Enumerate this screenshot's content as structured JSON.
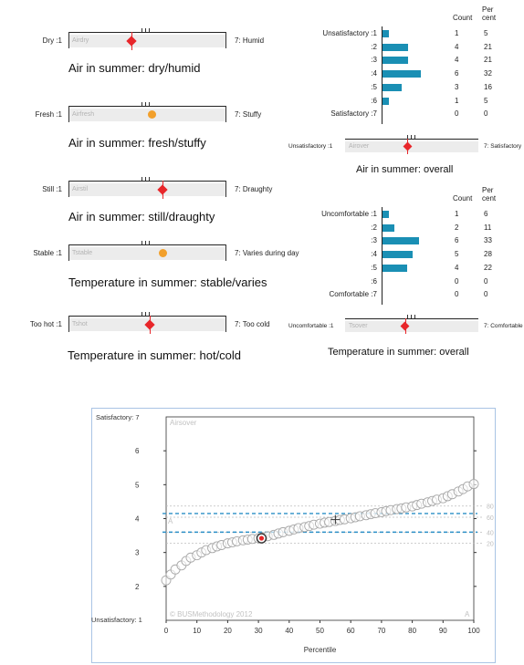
{
  "scales": [
    {
      "left": "Dry :1",
      "right": "7: Humid",
      "code": "Airdry",
      "title": "Air in summer: dry/humid",
      "marker": "diamond",
      "color": "#e8262a",
      "score": 3.4
    },
    {
      "left": "Fresh :1",
      "right": "7: Stuffy",
      "code": "Airfresh",
      "title": "Air in summer: fresh/stuffy",
      "marker": "dot",
      "color": "#f2a02c",
      "score": 4.2
    },
    {
      "left": "Still :1",
      "right": "7: Draughty",
      "code": "Airstil",
      "title": "Air in summer: still/draughty",
      "marker": "diamond",
      "color": "#e8262a",
      "score": 4.6
    },
    {
      "left": "Stable :1",
      "right": "7: Varies during day",
      "code": "Tstable",
      "title": "Temperature in summer: stable/varies",
      "marker": "dot",
      "color": "#f2a02c",
      "score": 4.6
    },
    {
      "left": "Too hot :1",
      "right": "7: Too cold",
      "code": "Tshot",
      "title": "Temperature in summer: hot/cold",
      "marker": "diamond",
      "color": "#e8262a",
      "score": 4.1
    }
  ],
  "hist1": {
    "count_header": "Count",
    "percent_header_1": "Per",
    "percent_header_2": "cent",
    "labels": [
      "Unsatisfactory :1",
      ":2",
      ":3",
      ":4",
      ":5",
      ":6",
      "Satisfactory :7"
    ],
    "counts": [
      1,
      4,
      4,
      6,
      3,
      1,
      0
    ],
    "percents": [
      5,
      21,
      21,
      32,
      16,
      5,
      0
    ],
    "scale": {
      "left": "Unsatisfactory :1",
      "right": "7: Satisfactory",
      "code": "Airover",
      "score": 3.8,
      "color": "#e8262a"
    },
    "title": "Air in summer: overall"
  },
  "hist2": {
    "count_header": "Count",
    "percent_header_1": "Per",
    "percent_header_2": "cent",
    "labels": [
      "Uncomfortable :1",
      ":2",
      ":3",
      ":4",
      ":5",
      ":6",
      "Comfortable :7"
    ],
    "counts": [
      1,
      2,
      6,
      5,
      4,
      0,
      0
    ],
    "percents": [
      6,
      11,
      33,
      28,
      22,
      0,
      0
    ],
    "scale": {
      "left": "Uncomfortable :1",
      "right": "7: Comfortable",
      "code": "Tsover",
      "score": 3.7,
      "color": "#e8262a"
    },
    "title": "Temperature in summer: overall"
  },
  "chart_data": {
    "type": "scatter",
    "code": "Airsover",
    "xlabel": "Percentile",
    "xlim": [
      0,
      100
    ],
    "ylim": [
      1,
      7
    ],
    "xticks": [
      0,
      10,
      20,
      30,
      40,
      50,
      60,
      70,
      80,
      90,
      100
    ],
    "yticks": [
      2,
      3,
      4,
      5,
      6
    ],
    "ytop_label": "Satisfactory: 7",
    "ybottom_label": "Unsatisfactory: 1",
    "copyright": "© BUSMethodology 2012",
    "corner_a_left": "A",
    "corner_a_right": "A",
    "right_ticks": [
      "80",
      "60",
      "40",
      "20"
    ],
    "right_tick_values": [
      4.37,
      4.04,
      3.6,
      3.27
    ],
    "blue_dashed": [
      4.15,
      3.6
    ],
    "highlight": {
      "x": 31,
      "y": 3.42
    },
    "median_mark": {
      "x": 55,
      "y": 3.97
    },
    "points": [
      [
        0,
        2.18
      ],
      [
        1.5,
        2.35
      ],
      [
        3,
        2.5
      ],
      [
        5,
        2.62
      ],
      [
        6.5,
        2.75
      ],
      [
        8,
        2.85
      ],
      [
        10,
        2.92
      ],
      [
        11.5,
        3.0
      ],
      [
        13,
        3.07
      ],
      [
        15,
        3.13
      ],
      [
        16.5,
        3.18
      ],
      [
        18,
        3.22
      ],
      [
        20,
        3.27
      ],
      [
        21.5,
        3.3
      ],
      [
        23,
        3.33
      ],
      [
        25,
        3.36
      ],
      [
        26.5,
        3.38
      ],
      [
        28,
        3.4
      ],
      [
        30,
        3.42
      ],
      [
        31.5,
        3.45
      ],
      [
        33,
        3.48
      ],
      [
        35,
        3.52
      ],
      [
        36.5,
        3.56
      ],
      [
        38,
        3.6
      ],
      [
        40,
        3.64
      ],
      [
        41.5,
        3.68
      ],
      [
        43,
        3.72
      ],
      [
        45,
        3.75
      ],
      [
        46.5,
        3.78
      ],
      [
        48,
        3.82
      ],
      [
        50,
        3.85
      ],
      [
        51.5,
        3.88
      ],
      [
        53,
        3.9
      ],
      [
        55,
        3.93
      ],
      [
        56.5,
        3.96
      ],
      [
        58,
        3.98
      ],
      [
        60,
        4.01
      ],
      [
        61.5,
        4.04
      ],
      [
        63,
        4.07
      ],
      [
        65,
        4.1
      ],
      [
        66.5,
        4.13
      ],
      [
        68,
        4.16
      ],
      [
        70,
        4.19
      ],
      [
        71.5,
        4.22
      ],
      [
        73,
        4.25
      ],
      [
        75,
        4.28
      ],
      [
        76.5,
        4.3
      ],
      [
        78,
        4.33
      ],
      [
        80,
        4.36
      ],
      [
        81.5,
        4.4
      ],
      [
        83,
        4.44
      ],
      [
        85,
        4.48
      ],
      [
        86.5,
        4.52
      ],
      [
        88,
        4.56
      ],
      [
        90,
        4.6
      ],
      [
        91.5,
        4.66
      ],
      [
        93,
        4.72
      ],
      [
        95,
        4.8
      ],
      [
        96.5,
        4.87
      ],
      [
        98,
        4.95
      ],
      [
        100,
        5.02
      ]
    ]
  }
}
